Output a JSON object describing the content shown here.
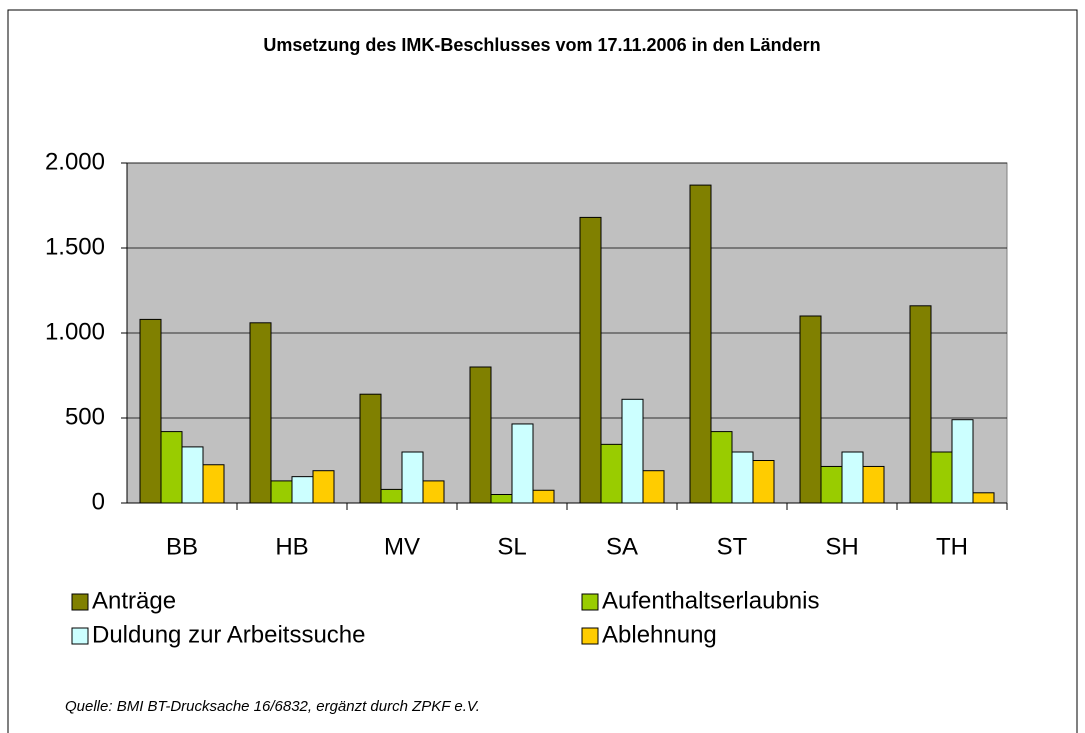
{
  "chart_data": {
    "type": "bar",
    "title": "Umsetzung des IMK-Beschlusses vom 17.11.2006 in den Ländern",
    "categories": [
      "BB",
      "HB",
      "MV",
      "SL",
      "SA",
      "ST",
      "SH",
      "TH"
    ],
    "series": [
      {
        "name": "Anträge",
        "color": "#808000",
        "values": [
          1080,
          1060,
          640,
          800,
          1680,
          1870,
          1100,
          1160
        ]
      },
      {
        "name": "Aufenthaltserlaubnis",
        "color": "#99cc00",
        "values": [
          420,
          130,
          80,
          50,
          345,
          420,
          215,
          300
        ]
      },
      {
        "name": "Duldung zur Arbeitssuche",
        "color": "#ccffff",
        "values": [
          330,
          155,
          300,
          465,
          610,
          300,
          300,
          490
        ]
      },
      {
        "name": "Ablehnung",
        "color": "#ffcc00",
        "values": [
          225,
          190,
          130,
          75,
          190,
          250,
          215,
          60
        ]
      }
    ],
    "ylim": [
      0,
      2000
    ],
    "yticks": [
      0,
      500,
      {
        "value": 1000,
        "label": "1.000"
      },
      {
        "value": 1500,
        "label": "1.500"
      },
      {
        "value": 2000,
        "label": "2.000"
      }
    ],
    "grid": true,
    "note": "Quelle: BMI BT-Drucksache 16/6832, ergänzt durch ZPKF e.V."
  }
}
